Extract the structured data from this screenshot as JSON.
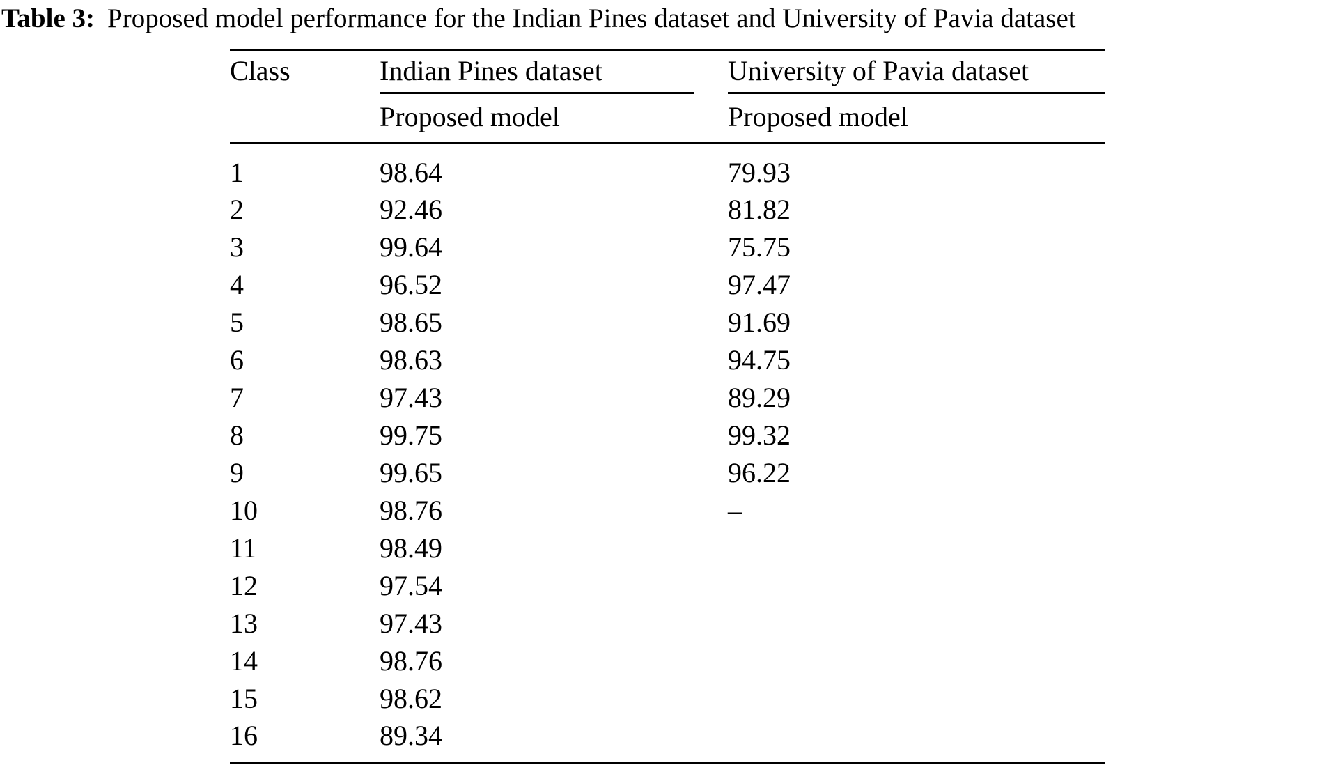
{
  "caption": {
    "label": "Table 3:",
    "text": "Proposed model performance for the Indian Pines dataset and University of Pavia dataset"
  },
  "table": {
    "headers": {
      "class": "Class",
      "group1": "Indian Pines dataset",
      "group2": "University of Pavia dataset",
      "group1_sub": "Proposed model",
      "group2_sub": "Proposed model"
    },
    "rows": [
      {
        "class": "1",
        "indian_pines": "98.64",
        "pavia": "79.93"
      },
      {
        "class": "2",
        "indian_pines": "92.46",
        "pavia": "81.82"
      },
      {
        "class": "3",
        "indian_pines": "99.64",
        "pavia": "75.75"
      },
      {
        "class": "4",
        "indian_pines": "96.52",
        "pavia": "97.47"
      },
      {
        "class": "5",
        "indian_pines": "98.65",
        "pavia": "91.69"
      },
      {
        "class": "6",
        "indian_pines": "98.63",
        "pavia": "94.75"
      },
      {
        "class": "7",
        "indian_pines": "97.43",
        "pavia": "89.29"
      },
      {
        "class": "8",
        "indian_pines": "99.75",
        "pavia": "99.32"
      },
      {
        "class": "9",
        "indian_pines": "99.65",
        "pavia": "96.22"
      },
      {
        "class": "10",
        "indian_pines": "98.76",
        "pavia": "–"
      },
      {
        "class": "11",
        "indian_pines": "98.49",
        "pavia": ""
      },
      {
        "class": "12",
        "indian_pines": "97.54",
        "pavia": ""
      },
      {
        "class": "13",
        "indian_pines": "97.43",
        "pavia": ""
      },
      {
        "class": "14",
        "indian_pines": "98.76",
        "pavia": ""
      },
      {
        "class": "15",
        "indian_pines": "98.62",
        "pavia": ""
      },
      {
        "class": "16",
        "indian_pines": "89.34",
        "pavia": ""
      }
    ]
  },
  "colors": {
    "text": "#000000",
    "background": "#ffffff",
    "rule": "#000000"
  }
}
